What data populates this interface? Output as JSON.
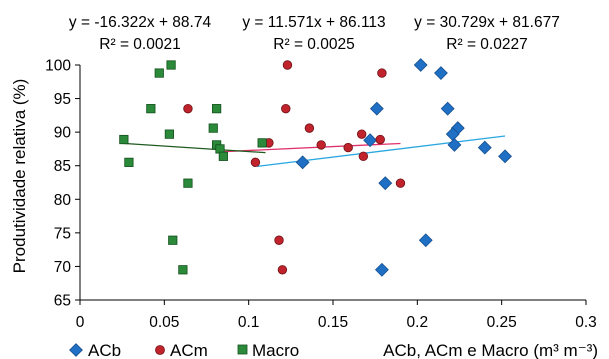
{
  "chart_data": {
    "type": "scatter",
    "xlabel": "ACb, ACm e Macro (m³ m⁻³)",
    "ylabel": "Produtividade relativa (%)",
    "xlim": [
      0,
      0.3
    ],
    "ylim": [
      65,
      100
    ],
    "x_ticks": [
      "0",
      "0.05",
      "0.1",
      "0.15",
      "0.2",
      "0.25",
      "0.3"
    ],
    "y_ticks": [
      "65",
      "70",
      "75",
      "80",
      "85",
      "90",
      "95",
      "100"
    ],
    "grid": false,
    "legend_position": "bottom-left",
    "series": [
      {
        "name": "ACb",
        "marker": "diamond",
        "color": "#1f6fc5",
        "trendline_color": "#2aa7e0",
        "trendline_x": [
          0.105,
          0.252
        ],
        "equation": "y = 30.729x + 81.677",
        "r2": "R² = 0.0227",
        "points": [
          [
            0.202,
            100
          ],
          [
            0.214,
            98.8
          ],
          [
            0.218,
            93.5
          ],
          [
            0.224,
            90.6
          ],
          [
            0.221,
            89.7
          ],
          [
            0.176,
            93.5
          ],
          [
            0.172,
            88.8
          ],
          [
            0.222,
            88.1
          ],
          [
            0.24,
            87.7
          ],
          [
            0.252,
            86.4
          ],
          [
            0.132,
            85.5
          ],
          [
            0.181,
            82.4
          ],
          [
            0.205,
            73.9
          ],
          [
            0.179,
            69.5
          ]
        ]
      },
      {
        "name": "ACm",
        "marker": "circle",
        "color": "#c0232b",
        "trendline_color": "#e0306a",
        "trendline_x": [
          0.083,
          0.19
        ],
        "equation": "y = 11.571x + 86.113",
        "r2": "R² = 0.0025",
        "points": [
          [
            0.123,
            100
          ],
          [
            0.179,
            98.8
          ],
          [
            0.064,
            93.5
          ],
          [
            0.122,
            93.5
          ],
          [
            0.136,
            90.6
          ],
          [
            0.167,
            89.7
          ],
          [
            0.112,
            88.4
          ],
          [
            0.143,
            88.1
          ],
          [
            0.178,
            88.9
          ],
          [
            0.159,
            87.7
          ],
          [
            0.168,
            86.4
          ],
          [
            0.104,
            85.5
          ],
          [
            0.19,
            82.4
          ],
          [
            0.118,
            73.9
          ],
          [
            0.12,
            69.5
          ]
        ]
      },
      {
        "name": "Macro",
        "marker": "square",
        "color": "#2a8a3a",
        "trendline_color": "#1f5a1f",
        "trendline_x": [
          0.025,
          0.11
        ],
        "equation": "y = -16.322x + 88.74",
        "r2": "R² = 0.0021",
        "points": [
          [
            0.054,
            100
          ],
          [
            0.047,
            98.8
          ],
          [
            0.042,
            93.5
          ],
          [
            0.081,
            93.5
          ],
          [
            0.079,
            90.6
          ],
          [
            0.053,
            89.7
          ],
          [
            0.026,
            88.9
          ],
          [
            0.081,
            88.1
          ],
          [
            0.083,
            87.5
          ],
          [
            0.108,
            88.4
          ],
          [
            0.085,
            86.4
          ],
          [
            0.029,
            85.5
          ],
          [
            0.064,
            82.4
          ],
          [
            0.055,
            73.9
          ],
          [
            0.061,
            69.5
          ]
        ]
      }
    ]
  }
}
